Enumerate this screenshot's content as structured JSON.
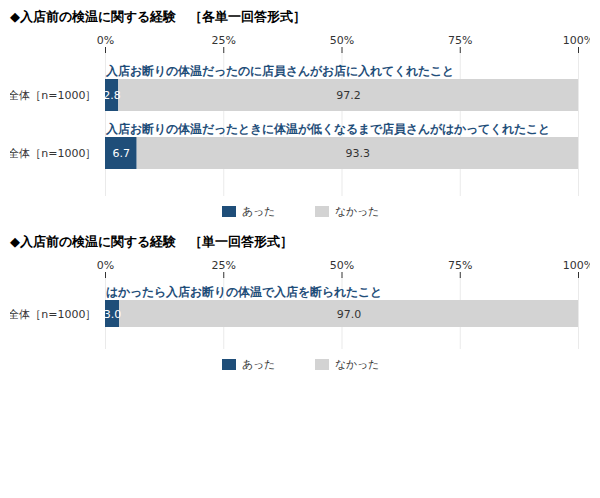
{
  "chart_data": [
    {
      "type": "bar",
      "orientation": "horizontal",
      "stacked": true,
      "title": "◆入店前の検温に関する経験　［各単一回答形式］",
      "categories": [
        "全体［n=1000］",
        "全体［n=1000］"
      ],
      "annotations": [
        "入店お断りの体温だったのに店員さんがお店に入れてくれたこと",
        "入店お断りの体温だったときに体温が低くなるまで店員さんがはかってくれたこと"
      ],
      "series": [
        {
          "name": "あった",
          "color": "#1f4e79",
          "values": [
            2.8,
            6.7
          ]
        },
        {
          "name": "なかった",
          "color": "#d3d3d3",
          "values": [
            97.2,
            93.3
          ]
        }
      ],
      "xlim": [
        0,
        100
      ],
      "xticks": [
        {
          "value": 0,
          "label": "0%"
        },
        {
          "value": 25,
          "label": "25%"
        },
        {
          "value": 50,
          "label": "50%"
        },
        {
          "value": 75,
          "label": "75%"
        },
        {
          "value": 100,
          "label": "100%"
        }
      ],
      "grid": true,
      "data_labels": true,
      "legend": "bottom"
    },
    {
      "type": "bar",
      "orientation": "horizontal",
      "stacked": true,
      "title": "◆入店前の検温に関する経験　［単一回答形式］",
      "categories": [
        "全体［n=1000］"
      ],
      "annotations": [
        "はかったら入店お断りの体温で入店を断られたこと"
      ],
      "series": [
        {
          "name": "あった",
          "color": "#1f4e79",
          "values": [
            3.0
          ],
          "value_labels": [
            "3.0"
          ]
        },
        {
          "name": "なかった",
          "color": "#d3d3d3",
          "values": [
            97.0
          ],
          "value_labels": [
            "97.0"
          ]
        }
      ],
      "xlim": [
        0,
        100
      ],
      "xticks": [
        {
          "value": 0,
          "label": "0%"
        },
        {
          "value": 25,
          "label": "25%"
        },
        {
          "value": 50,
          "label": "50%"
        },
        {
          "value": 75,
          "label": "75%"
        },
        {
          "value": 100,
          "label": "100%"
        }
      ],
      "grid": true,
      "data_labels": true,
      "legend": "bottom"
    }
  ]
}
